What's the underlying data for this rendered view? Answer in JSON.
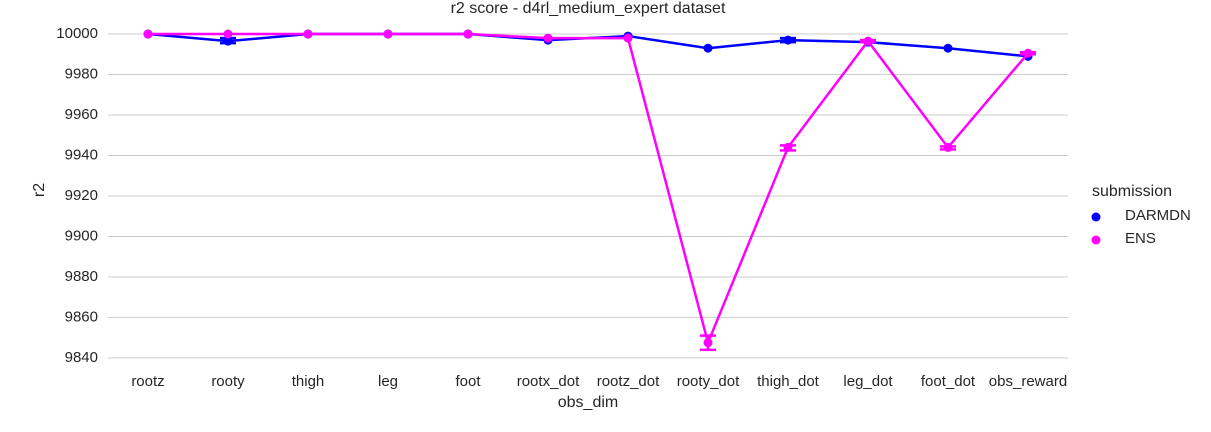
{
  "chart_data": {
    "type": "point",
    "title": "r2 score - d4rl_medium_expert dataset",
    "x_label": "obs_dim",
    "y_label": "r2",
    "legend_title": "submission",
    "legend_position": "right",
    "grid": true,
    "categories": [
      "rootz",
      "rooty",
      "thigh",
      "leg",
      "foot",
      "rootx_dot",
      "rootz_dot",
      "rooty_dot",
      "thigh_dot",
      "leg_dot",
      "foot_dot",
      "obs_reward"
    ],
    "ylim": [
      9836,
      10002
    ],
    "yticks": [
      9840,
      9860,
      9880,
      9900,
      9920,
      9940,
      9960,
      9980,
      10000
    ],
    "series": [
      {
        "name": "DARMDN",
        "color": "#0000ff",
        "values": [
          10000,
          9996.5,
          10000,
          10000,
          10000,
          9997,
          9999,
          9993,
          9997,
          9996,
          9993,
          9989
        ],
        "ci": [
          null,
          [
            9995.5,
            9998
          ],
          null,
          null,
          null,
          null,
          null,
          null,
          [
            9996,
            9998
          ],
          null,
          null,
          null
        ]
      },
      {
        "name": "ENS",
        "color": "#ff00ff",
        "values": [
          10000,
          10000,
          10000,
          10000,
          10000,
          9998,
          9998,
          9847.5,
          9944,
          9996.5,
          9944,
          9990.5
        ],
        "ci": [
          null,
          null,
          null,
          null,
          null,
          null,
          null,
          [
            9844,
            9851
          ],
          [
            9942.5,
            9945
          ],
          [
            9996,
            9997
          ],
          [
            9943,
            9944.5
          ],
          [
            9990,
            9991
          ]
        ]
      }
    ]
  }
}
